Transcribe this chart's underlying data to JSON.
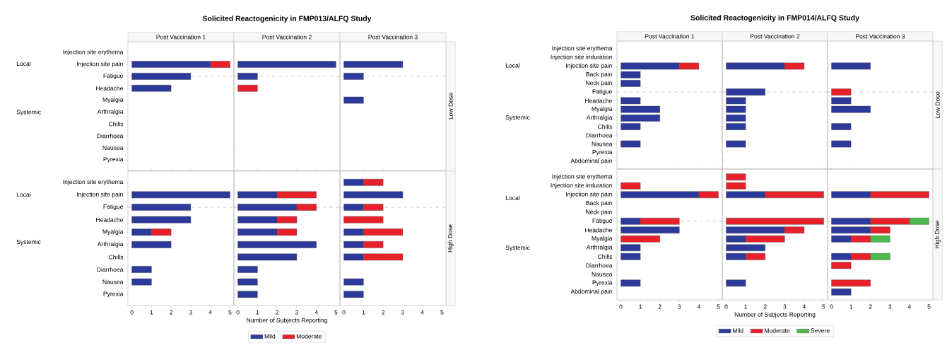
{
  "chart_data": [
    {
      "type": "bar",
      "orientation": "horizontal",
      "stacked": true,
      "title": "Solicited Reactogenicity in FMP013/ALFQ Study",
      "subtitle": "Post Vaccination 1",
      "tick_labels": "y",
      "xlim": [
        -0.2,
        5.2
      ],
      "xticks": [
        0,
        1,
        2,
        3,
        4,
        5
      ],
      "categories": [
        "Injection site erythema",
        "Injection site pain",
        "Fatigue",
        "Headache",
        "Myalgia",
        "Arthralgia",
        "Chills",
        "Diarrhoea",
        "Nausea",
        "Pyrexia"
      ],
      "series": [
        {
          "color": "#2b3a9b",
          "values": [
            null,
            4,
            3,
            2,
            null,
            null,
            null,
            null,
            null,
            null
          ]
        },
        {
          "color": "#e8202a",
          "values": [
            null,
            1,
            null,
            null,
            null,
            null,
            null,
            null,
            null,
            null
          ]
        }
      ],
      "ref_lines": [
        {
          "axis": "y",
          "value": "Fatigue",
          "color": "#c8c8c8",
          "line_style": "dashed"
        }
      ],
      "annotations": [
        "Local",
        "Systemic"
      ]
    },
    {
      "type": "bar",
      "orientation": "horizontal",
      "stacked": true,
      "subtitle": "Post Vaccination 2",
      "tick_labels": false,
      "xlim": [
        -0.2,
        5.2
      ],
      "xticks": [
        0,
        1,
        2,
        3,
        4,
        5
      ],
      "categories": [
        "Injection site erythema",
        "Injection site pain",
        "Fatigue",
        "Headache",
        "Myalgia",
        "Arthralgia",
        "Chills",
        "Diarrhoea",
        "Nausea",
        "Pyrexia"
      ],
      "series": [
        {
          "color": "#2b3a9b",
          "values": [
            null,
            5,
            1,
            null,
            null,
            null,
            null,
            null,
            null,
            null
          ]
        },
        {
          "color": "#e8202a",
          "values": [
            null,
            null,
            null,
            1,
            null,
            null,
            null,
            null,
            null,
            null
          ]
        }
      ],
      "ref_lines": [
        {
          "axis": "y",
          "value": "Fatigue",
          "color": "#c8c8c8",
          "line_style": "dashed"
        }
      ]
    },
    {
      "type": "bar",
      "orientation": "horizontal",
      "stacked": true,
      "subtitle": "Post Vaccination 3",
      "y2label": "Low Dose",
      "tick_labels": false,
      "xlim": [
        -0.2,
        5.2
      ],
      "xticks": [
        0,
        1,
        2,
        3,
        4,
        5
      ],
      "categories": [
        "Injection site erythema",
        "Injection site pain",
        "Fatigue",
        "Headache",
        "Myalgia",
        "Arthralgia",
        "Chills",
        "Diarrhoea",
        "Nausea",
        "Pyrexia"
      ],
      "series": [
        {
          "color": "#2b3a9b",
          "values": [
            null,
            3,
            1,
            null,
            1,
            null,
            null,
            null,
            null,
            null
          ]
        }
      ],
      "ref_lines": [
        {
          "axis": "y",
          "value": "Fatigue",
          "color": "#c8c8c8",
          "line_style": "dashed"
        }
      ]
    },
    {
      "type": "bar",
      "orientation": "horizontal",
      "stacked": true,
      "xlim": [
        -0.2,
        5.2
      ],
      "xticks": [
        0,
        1,
        2,
        3,
        4,
        5
      ],
      "categories": [
        "Injection site erythema",
        "Injection site pain",
        "Fatigue",
        "Headache",
        "Myalgia",
        "Arthralgia",
        "Chills",
        "Diarrhoea",
        "Nausea",
        "Pyrexia"
      ],
      "series": [
        {
          "color": "#2b3a9b",
          "values": [
            null,
            5,
            3,
            3,
            1,
            2,
            null,
            1,
            1,
            null
          ]
        },
        {
          "color": "#e8202a",
          "values": [
            null,
            null,
            null,
            null,
            1,
            null,
            null,
            null,
            null,
            null
          ]
        }
      ],
      "ref_lines": [
        {
          "axis": "y",
          "value": "Fatigue",
          "color": "#c8c8c8",
          "line_style": "dashed"
        }
      ],
      "annotations": [
        "Local",
        "Systemic"
      ]
    },
    {
      "type": "bar",
      "orientation": "horizontal",
      "stacked": true,
      "tick_labels": "x",
      "xlim": [
        -0.2,
        5.2
      ],
      "xticks": [
        0,
        1,
        2,
        3,
        4,
        5
      ],
      "xlabel": "Number of Subjects Reporting",
      "legend": "bottom",
      "categories": [
        "Injection site erythema",
        "Injection site pain",
        "Fatigue",
        "Headache",
        "Myalgia",
        "Arthralgia",
        "Chills",
        "Diarrhoea",
        "Nausea",
        "Pyrexia"
      ],
      "series": [
        {
          "name": "Mild",
          "color": "#2b3a9b",
          "values": [
            null,
            2,
            3,
            2,
            2,
            4,
            3,
            1,
            1,
            1
          ]
        },
        {
          "name": "Moderate",
          "color": "#e8202a",
          "values": [
            null,
            2,
            1,
            1,
            1,
            null,
            null,
            null,
            null,
            null
          ]
        }
      ],
      "ref_lines": [
        {
          "axis": "y",
          "value": "Fatigue",
          "color": "#c8c8c8",
          "line_style": "dashed"
        }
      ]
    },
    {
      "type": "bar",
      "orientation": "horizontal",
      "stacked": true,
      "y2label": "High Dose",
      "tick_labels": "x",
      "xlim": [
        -0.2,
        5.2
      ],
      "xticks": [
        0,
        1,
        2,
        3,
        4,
        5
      ],
      "categories": [
        "Injection site erythema",
        "Injection site pain",
        "Fatigue",
        "Headache",
        "Myalgia",
        "Arthralgia",
        "Chills",
        "Diarrhoea",
        "Nausea",
        "Pyrexia"
      ],
      "series": [
        {
          "color": "#2b3a9b",
          "values": [
            1,
            3,
            1,
            null,
            1,
            1,
            1,
            null,
            1,
            1
          ]
        },
        {
          "color": "#e8202a",
          "values": [
            1,
            null,
            1,
            2,
            2,
            1,
            2,
            null,
            null,
            null
          ]
        }
      ],
      "ref_lines": [
        {
          "axis": "y",
          "value": "Fatigue",
          "color": "#c8c8c8",
          "line_style": "dashed"
        }
      ]
    },
    {
      "type": "bar",
      "orientation": "horizontal",
      "stacked": true,
      "title": "Solicited Reactogenicity in FMP014/ALFQ Study",
      "subtitle": "Post Vaccination 1",
      "tick_labels": "y",
      "xlim": [
        -0.2,
        5.2
      ],
      "xticks": [
        0,
        1,
        2,
        3,
        4,
        5
      ],
      "categories": [
        "Injection site erythema",
        "Injection site induration",
        "Injection site pain",
        "Back pain",
        "Neck pain",
        "Fatigue",
        "Headache",
        "Myalgia",
        "Arthralgia",
        "Chills",
        "Diarrhoea",
        "Nausea",
        "Pyrexia",
        "Abdominal pain"
      ],
      "series": [
        {
          "color": "#2b3a9b",
          "values": [
            null,
            null,
            3,
            1,
            1,
            null,
            1,
            2,
            2,
            1,
            null,
            1,
            null,
            null
          ]
        },
        {
          "color": "#e8202a",
          "values": [
            null,
            null,
            1,
            null,
            null,
            null,
            null,
            null,
            null,
            null,
            null,
            null,
            null,
            null
          ]
        }
      ],
      "ref_lines": [
        {
          "axis": "y",
          "value": "Fatigue",
          "color": "#c8c8c8",
          "line_style": "dashed"
        }
      ],
      "annotations": [
        "Local",
        "Systemic"
      ]
    },
    {
      "type": "bar",
      "orientation": "horizontal",
      "stacked": true,
      "subtitle": "Post Vaccination 2",
      "tick_labels": false,
      "xlim": [
        -0.2,
        5.2
      ],
      "xticks": [
        0,
        1,
        2,
        3,
        4,
        5
      ],
      "categories": [
        "Injection site erythema",
        "Injection site induration",
        "Injection site pain",
        "Back pain",
        "Neck pain",
        "Fatigue",
        "Headache",
        "Myalgia",
        "Arthralgia",
        "Chills",
        "Diarrhoea",
        "Nausea",
        "Pyrexia",
        "Abdominal pain"
      ],
      "series": [
        {
          "color": "#2b3a9b",
          "values": [
            null,
            null,
            3,
            null,
            null,
            2,
            1,
            1,
            1,
            1,
            null,
            1,
            null,
            null
          ]
        },
        {
          "color": "#e8202a",
          "values": [
            null,
            null,
            1,
            null,
            null,
            null,
            null,
            null,
            null,
            null,
            null,
            null,
            null,
            null
          ]
        }
      ],
      "ref_lines": [
        {
          "axis": "y",
          "value": "Fatigue",
          "color": "#c8c8c8",
          "line_style": "dashed"
        }
      ]
    },
    {
      "type": "bar",
      "orientation": "horizontal",
      "stacked": true,
      "subtitle": "Post Vaccination 3",
      "y2label": "Low Dose",
      "tick_labels": false,
      "xlim": [
        -0.2,
        5.2
      ],
      "xticks": [
        0,
        1,
        2,
        3,
        4,
        5
      ],
      "categories": [
        "Injection site erythema",
        "Injection site induration",
        "Injection site pain",
        "Back pain",
        "Neck pain",
        "Fatigue",
        "Headache",
        "Myalgia",
        "Arthralgia",
        "Chills",
        "Diarrhoea",
        "Nausea",
        "Pyrexia",
        "Abdominal pain"
      ],
      "series": [
        {
          "color": "#2b3a9b",
          "values": [
            null,
            null,
            2,
            null,
            null,
            null,
            1,
            2,
            null,
            1,
            null,
            1,
            null,
            null
          ]
        },
        {
          "color": "#e8202a",
          "values": [
            null,
            null,
            null,
            null,
            null,
            1,
            null,
            null,
            null,
            null,
            null,
            null,
            null,
            null
          ]
        }
      ],
      "ref_lines": [
        {
          "axis": "y",
          "value": "Fatigue",
          "color": "#c8c8c8",
          "line_style": "dashed"
        }
      ]
    },
    {
      "type": "bar",
      "orientation": "horizontal",
      "stacked": true,
      "xlim": [
        -0.2,
        5.2
      ],
      "xticks": [
        0,
        1,
        2,
        3,
        4,
        5
      ],
      "categories": [
        "Injection site erythema",
        "Injection site induration",
        "Injection site pain",
        "Back pain",
        "Neck pain",
        "Fatigue",
        "Headache",
        "Myalgia",
        "Arthralgia",
        "Chills",
        "Diarrhoea",
        "Nausea",
        "Pyrexia",
        "Abdominal pain"
      ],
      "series": [
        {
          "color": "#2b3a9b",
          "values": [
            null,
            null,
            4,
            null,
            null,
            1,
            3,
            null,
            1,
            1,
            null,
            null,
            1,
            null
          ]
        },
        {
          "color": "#e8202a",
          "values": [
            null,
            1,
            1,
            null,
            null,
            2,
            null,
            2,
            null,
            null,
            null,
            null,
            null,
            null
          ]
        }
      ],
      "ref_lines": [
        {
          "axis": "y",
          "value": "Fatigue",
          "color": "#c8c8c8",
          "line_style": "dashed"
        }
      ],
      "annotations": [
        "Local",
        "Systemic"
      ]
    },
    {
      "type": "bar",
      "orientation": "horizontal",
      "stacked": true,
      "tick_labels": "x",
      "xlim": [
        -0.2,
        5.2
      ],
      "xticks": [
        0,
        1,
        2,
        3,
        4,
        5
      ],
      "xlabel": "Number of Subjects Reporting",
      "legend": "bottom",
      "categories": [
        "Injection site erythema",
        "Injection site induration",
        "Injection site pain",
        "Back pain",
        "Neck pain",
        "Fatigue",
        "Headache",
        "Myalgia",
        "Arthralgia",
        "Chills",
        "Diarrhoea",
        "Nausea",
        "Pyrexia",
        "Abdominal pain"
      ],
      "series": [
        {
          "name": "Mild",
          "color": "#2b3a9b",
          "values": [
            null,
            null,
            2,
            null,
            null,
            null,
            3,
            1,
            2,
            1,
            null,
            null,
            1,
            null
          ]
        },
        {
          "name": "Moderate",
          "color": "#e8202a",
          "values": [
            1,
            1,
            3,
            null,
            null,
            5,
            1,
            2,
            null,
            1,
            null,
            null,
            null,
            null
          ]
        },
        {
          "name": "Severe",
          "color": "#4cbb4c",
          "values": [
            null,
            null,
            null,
            null,
            null,
            null,
            null,
            null,
            null,
            null,
            null,
            null,
            null,
            null
          ]
        }
      ],
      "ref_lines": [
        {
          "axis": "y",
          "value": "Fatigue",
          "color": "#c8c8c8",
          "line_style": "dashed"
        }
      ]
    },
    {
      "type": "bar",
      "orientation": "horizontal",
      "stacked": true,
      "y2label": "High Dose",
      "tick_labels": "x",
      "xlim": [
        -0.2,
        5.2
      ],
      "xticks": [
        0,
        1,
        2,
        3,
        4,
        5
      ],
      "categories": [
        "Injection site erythema",
        "Injection site induration",
        "Injection site pain",
        "Back pain",
        "Neck pain",
        "Fatigue",
        "Headache",
        "Myalgia",
        "Arthralgia",
        "Chills",
        "Diarrhoea",
        "Nausea",
        "Pyrexia",
        "Abdominal pain"
      ],
      "series": [
        {
          "color": "#2b3a9b",
          "values": [
            null,
            null,
            2,
            null,
            null,
            2,
            2,
            1,
            null,
            1,
            null,
            null,
            null,
            1
          ]
        },
        {
          "color": "#e8202a",
          "values": [
            null,
            null,
            3,
            null,
            null,
            2,
            1,
            1,
            null,
            1,
            1,
            null,
            2,
            null
          ]
        },
        {
          "color": "#4cbb4c",
          "values": [
            null,
            null,
            null,
            null,
            null,
            1,
            null,
            1,
            null,
            1,
            null,
            null,
            null,
            null
          ]
        }
      ],
      "ref_lines": [
        {
          "axis": "y",
          "value": "Fatigue",
          "color": "#c8c8c8",
          "line_style": "dashed"
        }
      ]
    }
  ]
}
